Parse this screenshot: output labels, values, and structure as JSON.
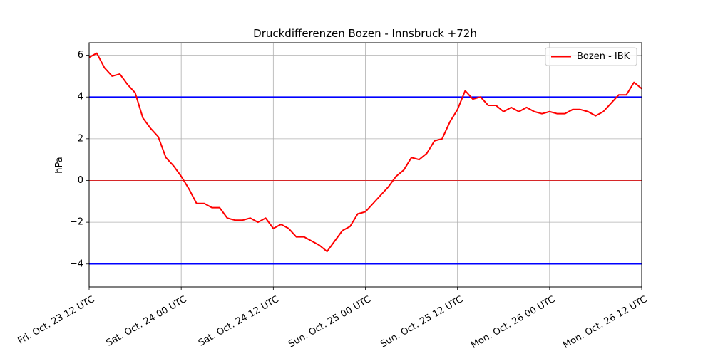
{
  "chart_data": {
    "type": "line",
    "title": "Druckdifferenzen Bozen - Innsbruck +72h",
    "xlabel": "",
    "ylabel": "hPa",
    "xlim": [
      0,
      72
    ],
    "ylim": [
      -5.1,
      6.6
    ],
    "x_unit": "hours since Fri. Oct. 23 12 UTC",
    "x_ticks": [
      {
        "value": 0,
        "label": "Fri. Oct. 23 12 UTC"
      },
      {
        "value": 12,
        "label": "Sat. Oct. 24 00 UTC"
      },
      {
        "value": 24,
        "label": "Sat. Oct. 24 12 UTC"
      },
      {
        "value": 36,
        "label": "Sun. Oct. 25 00 UTC"
      },
      {
        "value": 48,
        "label": "Sun. Oct. 25 12 UTC"
      },
      {
        "value": 60,
        "label": "Mon. Oct. 26 00 UTC"
      },
      {
        "value": 72,
        "label": "Mon. Oct. 26 12 UTC"
      }
    ],
    "y_ticks": [
      {
        "value": -4,
        "label": "−4"
      },
      {
        "value": -2,
        "label": "−2"
      },
      {
        "value": 0,
        "label": "0"
      },
      {
        "value": 2,
        "label": "2"
      },
      {
        "value": 4,
        "label": "4"
      },
      {
        "value": 6,
        "label": "6"
      }
    ],
    "grid": true,
    "legend_position": "top-right",
    "reference_lines": [
      {
        "y": 4,
        "color": "#0000ff"
      },
      {
        "y": -4,
        "color": "#0000ff"
      },
      {
        "y": 0,
        "color": "#d62728"
      }
    ],
    "series": [
      {
        "name": "Bozen - IBK",
        "color": "#ff0000",
        "x": [
          0,
          1,
          2,
          3,
          4,
          5,
          6,
          7,
          8,
          9,
          10,
          11,
          12,
          13,
          14,
          15,
          16,
          17,
          18,
          19,
          20,
          21,
          22,
          23,
          24,
          25,
          26,
          27,
          28,
          29,
          30,
          31,
          32,
          33,
          34,
          35,
          36,
          37,
          38,
          39,
          40,
          41,
          42,
          43,
          44,
          45,
          46,
          47,
          48,
          49,
          50,
          51,
          52,
          53,
          54,
          55,
          56,
          57,
          58,
          59,
          60,
          61,
          62,
          63,
          64,
          65,
          66,
          67,
          68,
          69,
          70,
          71,
          72
        ],
        "values": [
          5.9,
          6.1,
          5.4,
          5.0,
          5.1,
          4.6,
          4.2,
          3.0,
          2.5,
          2.1,
          1.1,
          0.7,
          0.2,
          -0.4,
          -1.1,
          -1.1,
          -1.3,
          -1.3,
          -1.8,
          -1.9,
          -1.9,
          -1.8,
          -2.0,
          -1.8,
          -2.3,
          -2.1,
          -2.3,
          -2.7,
          -2.7,
          -2.9,
          -3.1,
          -3.4,
          -2.9,
          -2.4,
          -2.2,
          -1.6,
          -1.5,
          -1.1,
          -0.7,
          -0.3,
          0.2,
          0.5,
          1.1,
          1.0,
          1.3,
          1.9,
          2.0,
          2.8,
          3.4,
          4.3,
          3.9,
          4.0,
          3.6,
          3.6,
          3.3,
          3.5,
          3.3,
          3.5,
          3.3,
          3.2,
          3.3,
          3.2,
          3.2,
          3.4,
          3.4,
          3.3,
          3.1,
          3.3,
          3.7,
          4.1,
          4.1,
          4.7,
          4.4
        ]
      }
    ]
  }
}
